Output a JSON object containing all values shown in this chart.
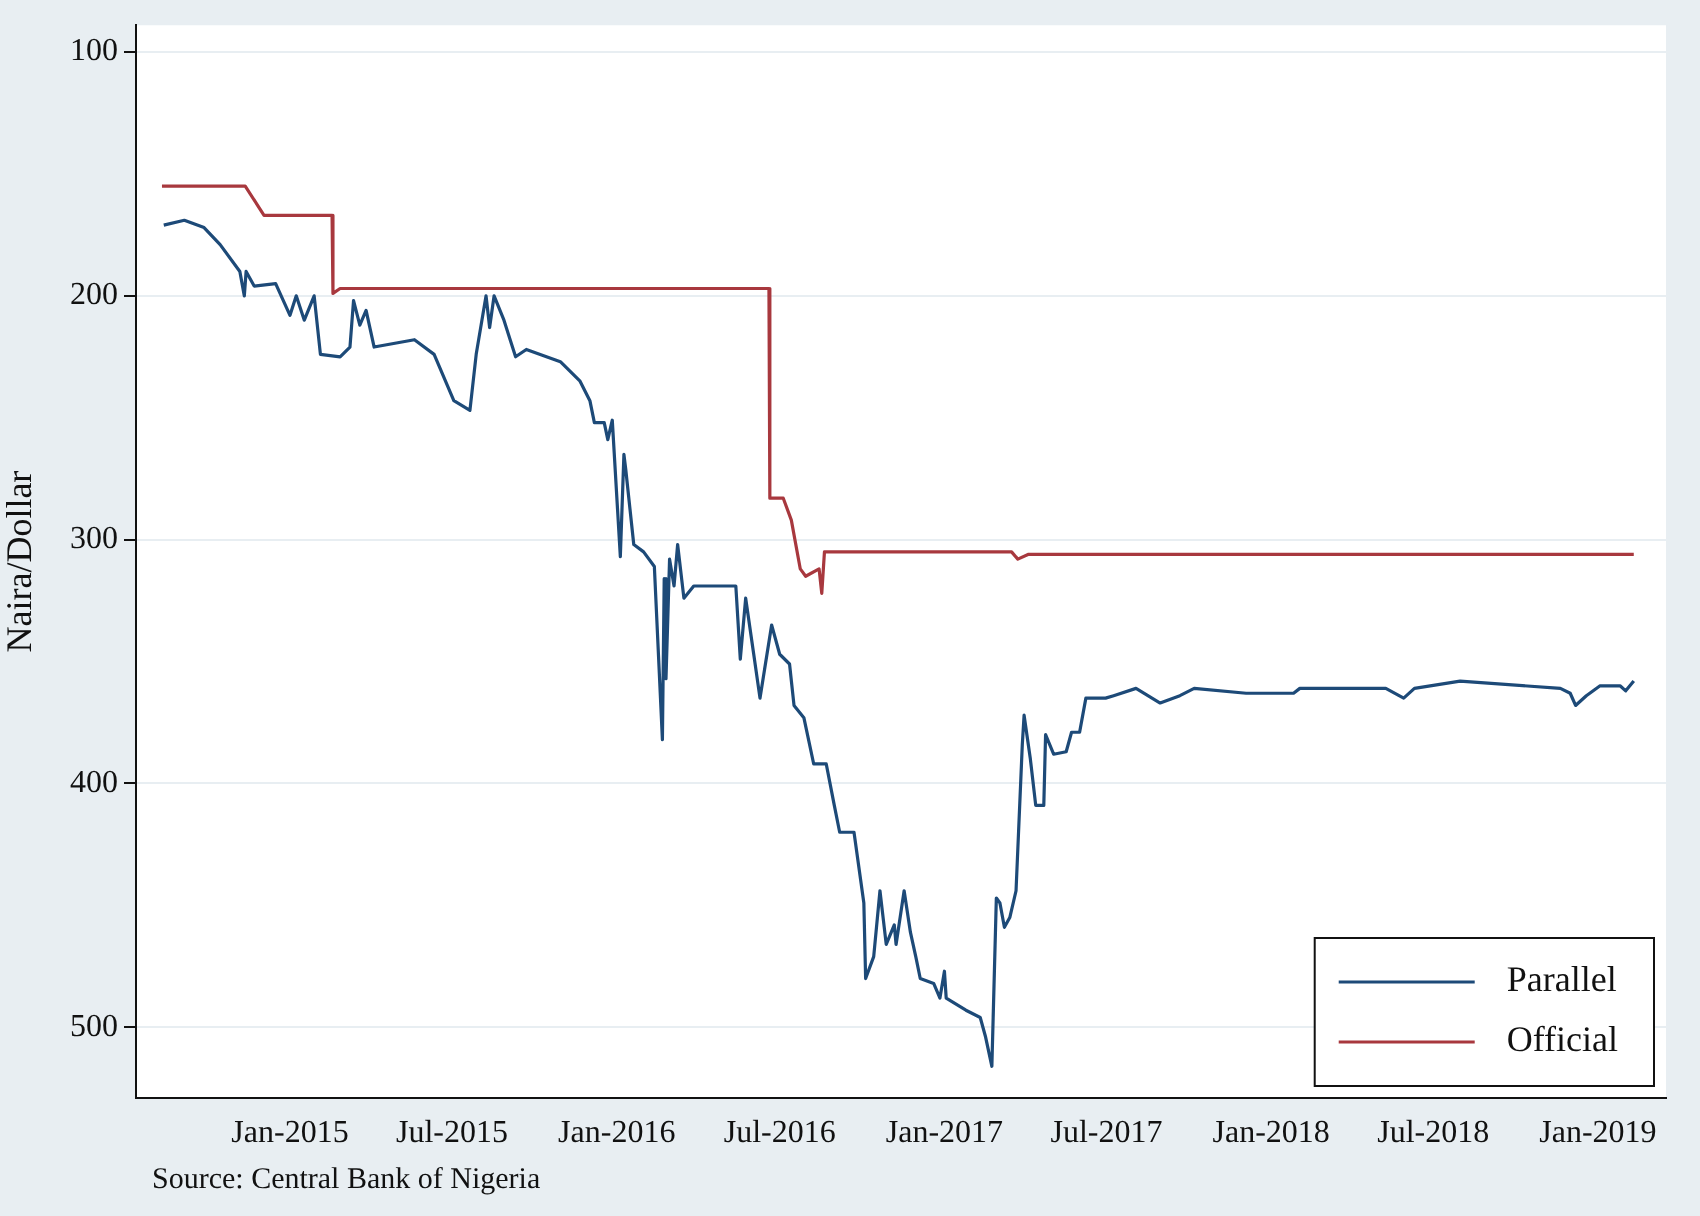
{
  "chart_data": {
    "type": "line",
    "ylabel": "Naira/Dollar",
    "annotations": [
      "Source: Central Bank of Nigeria"
    ],
    "xlim": [
      "2014-07-13",
      "2019-03-18"
    ],
    "xticks": [
      {
        "value": "2015-01",
        "label": "Jan-2015"
      },
      {
        "value": "2015-07",
        "label": "Jul-2015"
      },
      {
        "value": "2016-01",
        "label": "Jan-2016"
      },
      {
        "value": "2016-07",
        "label": "Jul-2016"
      },
      {
        "value": "2017-01",
        "label": "Jan-2017"
      },
      {
        "value": "2017-07",
        "label": "Jul-2017"
      },
      {
        "value": "2018-01",
        "label": "Jan-2018"
      },
      {
        "value": "2018-07",
        "label": "Jul-2018"
      },
      {
        "value": "2019-01",
        "label": "Jan-2019"
      }
    ],
    "ylim": [
      529,
      89
    ],
    "yticks": [
      100,
      200,
      300,
      400,
      500
    ],
    "grid": "y",
    "legend": "bottom right",
    "marker": "none",
    "line_style": "solid",
    "series": [
      {
        "name": "Parallel",
        "color": "#1d4a78",
        "x": [
          "2014-08-13",
          "2014-09-05",
          "2014-09-27",
          "2014-10-15",
          "2014-11-06",
          "2014-11-11",
          "2014-11-13",
          "2014-11-22",
          "2014-12-16",
          "2015-01-01",
          "2015-01-08",
          "2015-01-17",
          "2015-01-28",
          "2015-02-04",
          "2015-02-26",
          "2015-03-09",
          "2015-03-13",
          "2015-03-20",
          "2015-03-27",
          "2015-04-05",
          "2015-05-20",
          "2015-06-11",
          "2015-07-03",
          "2015-07-21",
          "2015-07-28",
          "2015-08-08",
          "2015-08-12",
          "2015-08-17",
          "2015-08-28",
          "2015-09-10",
          "2015-09-22",
          "2015-10-30",
          "2015-11-21",
          "2015-12-02",
          "2015-12-07",
          "2015-12-18",
          "2015-12-22",
          "2015-12-27",
          "2016-01-05",
          "2016-01-09",
          "2016-01-11",
          "2016-01-20",
          "2016-01-31",
          "2016-02-12",
          "2016-02-21",
          "2016-02-23",
          "2016-02-25",
          "2016-02-29",
          "2016-03-05",
          "2016-03-09",
          "2016-03-16",
          "2016-03-27",
          "2016-04-25",
          "2016-05-13",
          "2016-05-18",
          "2016-05-24",
          "2016-06-02",
          "2016-06-09",
          "2016-06-22",
          "2016-07-01",
          "2016-07-12",
          "2016-07-17",
          "2016-07-28",
          "2016-08-08",
          "2016-08-22",
          "2016-08-31",
          "2016-09-06",
          "2016-09-22",
          "2016-10-03",
          "2016-10-05",
          "2016-10-14",
          "2016-10-21",
          "2016-10-28",
          "2016-11-06",
          "2016-11-08",
          "2016-11-17",
          "2016-11-24",
          "2016-11-30",
          "2016-12-05",
          "2016-12-20",
          "2016-12-27",
          "2017-01-01",
          "2017-01-03",
          "2017-01-25",
          "2017-02-10",
          "2017-02-16",
          "2017-02-23",
          "2017-02-28",
          "2017-03-04",
          "2017-03-09",
          "2017-03-15",
          "2017-03-22",
          "2017-03-29",
          "2017-03-31",
          "2017-04-07",
          "2017-04-13",
          "2017-04-22",
          "2017-04-24",
          "2017-05-03",
          "2017-05-17",
          "2017-05-23",
          "2017-06-01",
          "2017-06-08",
          "2017-06-30",
          "2017-07-09",
          "2017-08-03",
          "2017-08-30",
          "2017-09-21",
          "2017-10-07",
          "2017-12-04",
          "2018-01-26",
          "2018-02-02",
          "2018-05-09",
          "2018-05-29",
          "2018-06-10",
          "2018-07-31",
          "2018-11-20",
          "2018-12-01",
          "2018-12-07",
          "2018-12-19",
          "2019-01-03",
          "2019-01-26",
          "2019-02-01",
          "2019-02-10"
        ],
        "values": [
          171,
          169,
          172,
          179,
          190,
          200,
          190,
          196,
          195,
          208,
          200,
          210,
          200,
          224,
          225,
          221,
          202,
          212,
          206,
          221,
          218,
          224,
          243,
          247,
          224,
          200,
          213,
          200,
          210,
          225,
          222,
          227,
          235,
          243,
          252,
          252,
          259,
          251,
          307,
          265,
          271,
          302,
          305,
          311,
          382,
          316,
          357,
          308,
          319,
          302,
          324,
          319,
          319,
          319,
          349,
          324,
          347,
          365,
          335,
          347,
          351,
          368,
          373,
          392,
          392,
          409,
          420,
          420,
          449,
          480,
          471,
          444,
          466,
          458,
          466,
          444,
          461,
          471,
          480,
          482,
          488,
          477,
          488,
          493,
          496,
          504,
          516,
          447,
          449,
          459,
          455,
          444,
          384,
          372,
          390,
          409,
          409,
          380,
          388,
          387,
          379,
          379,
          365,
          365,
          364,
          361,
          367,
          364,
          361,
          363,
          363,
          361,
          361,
          365,
          361,
          358,
          361,
          363,
          368,
          364,
          360,
          360,
          362,
          358
        ]
      },
      {
        "name": "Official",
        "color": "#a8383e",
        "x": [
          "2014-08-11",
          "2014-11-12",
          "2014-12-03",
          "2015-02-17",
          "2015-02-18",
          "2015-02-26",
          "2016-06-19",
          "2016-06-20",
          "2016-07-05",
          "2016-07-14",
          "2016-07-24",
          "2016-07-30",
          "2016-08-14",
          "2016-08-17",
          "2016-08-20",
          "2016-08-26",
          "2017-03-17",
          "2017-03-24",
          "2017-04-05",
          "2018-01-01",
          "2019-02-10"
        ],
        "values": [
          155,
          155,
          167,
          167,
          199,
          197,
          197,
          283,
          283,
          292,
          312,
          315,
          312,
          322,
          305,
          305,
          305,
          308,
          306,
          306,
          306
        ]
      }
    ]
  }
}
